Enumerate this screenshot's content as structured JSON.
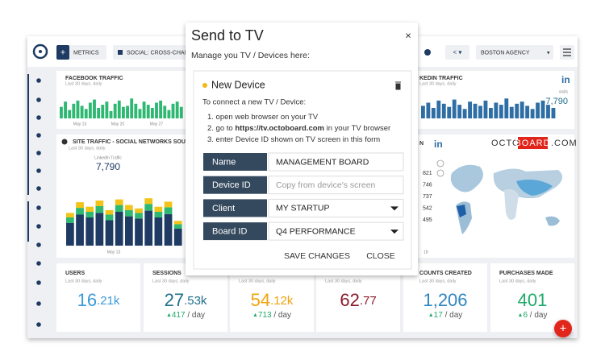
{
  "topbar": {
    "metrics_button": "METRICS",
    "dashboard_selector": "SOCIAL: CROSS-CHANN",
    "account_selector": "BOSTON AGENCY"
  },
  "widgets": {
    "facebook": {
      "title": "FACEBOOK TRAFFIC",
      "subtitle": "Last 30 days, daily",
      "dates": [
        "May 13",
        "May 20",
        "May 27"
      ],
      "color": "#2eb872",
      "bars": [
        55,
        80,
        40,
        70,
        85,
        60,
        45,
        75,
        90,
        50,
        65,
        80,
        35,
        70,
        85,
        55,
        60,
        95,
        70,
        45,
        80,
        65,
        50,
        75,
        85,
        60,
        40,
        70,
        80,
        55
      ]
    },
    "linkedin": {
      "title": "KEDIN TRAFFIC",
      "subtitle": "Last 30 days, daily",
      "metric_label": "visits",
      "metric_value": "7,790",
      "color": "#2f6ea5",
      "bars": [
        60,
        75,
        50,
        85,
        70,
        55,
        90,
        65,
        45,
        80,
        70,
        60,
        85,
        50,
        75,
        65,
        95,
        55,
        70,
        80,
        60,
        45,
        75,
        85,
        65,
        50
      ]
    },
    "website": {
      "title": "SITE TRAFFIC - SOCIAL NETWORKS SOURCES",
      "subtitle": "Last 30 days, daily",
      "metric_label": "LinkedIn Traffic",
      "metric_value": "7,790",
      "dates": [
        "May 13"
      ],
      "colors": [
        "#1f3b63",
        "#2eb872",
        "#f2c318"
      ],
      "stacks": [
        [
          40,
          10,
          8
        ],
        [
          55,
          12,
          10
        ],
        [
          50,
          10,
          9
        ],
        [
          58,
          12,
          10
        ],
        [
          45,
          10,
          8
        ],
        [
          60,
          12,
          10
        ],
        [
          52,
          11,
          9
        ],
        [
          48,
          10,
          8
        ],
        [
          62,
          12,
          10
        ],
        [
          50,
          10,
          9
        ],
        [
          56,
          12,
          10
        ],
        [
          30,
          8,
          6
        ]
      ]
    },
    "map": {
      "title": "N",
      "brand": {
        "left": "OCTO",
        "box": "BOARD",
        "right": ".COM"
      },
      "values": [
        821,
        746,
        737,
        542,
        495
      ],
      "date": "18"
    }
  },
  "kpis": [
    {
      "title": "USERS",
      "subtitle": "Last 30 days, daily",
      "value": "16",
      "suffix": ".21k",
      "color": "#3a9ad9"
    },
    {
      "title": "SESSIONS",
      "subtitle": "Last 30 days, daily",
      "value": "27",
      "suffix": ".53k",
      "color": "#1f6f8b",
      "delta": "417",
      "per": "/ day"
    },
    {
      "subtitle": "Last 30 days, daily",
      "value": "54",
      "suffix": ".12k",
      "color": "#f0a30a",
      "delta": "713",
      "per": "/ day"
    },
    {
      "subtitle": "Last 30 days, daily",
      "value": "62",
      "suffix": ".77",
      "color": "#8b1a2b"
    },
    {
      "title": "COUNTS CREATED",
      "subtitle": "Last 30 days, daily",
      "value": "1,206",
      "color": "#2e86c1",
      "delta": "17",
      "per": "/ day"
    },
    {
      "title": "PURCHASES MADE",
      "subtitle": "Last 30 days, daily",
      "value": "401",
      "color": "#1eaa6a",
      "delta": "6",
      "per": "/ day"
    }
  ],
  "modal": {
    "title": "Send to TV",
    "close_icon": "×",
    "subtitle": "Manage you TV / Devices here:",
    "device_title": "New Device",
    "intro": "To connect a new TV / Device:",
    "steps": [
      [
        "1. open web browser on your TV"
      ],
      [
        "2. go to ",
        "https://tv.octoboard.com",
        " in your TV browser"
      ],
      [
        "3. enter Device ID shown on TV screen in this form"
      ]
    ],
    "fields": [
      {
        "label": "Name",
        "value": "MANAGEMENT BOARD"
      },
      {
        "label": "Device ID",
        "placeholder": "Copy from device's screen"
      },
      {
        "label": "Client",
        "value": "MY STARTUP"
      },
      {
        "label": "Board ID",
        "value": "Q4 PERFORMANCE"
      }
    ],
    "save_button": "SAVE CHANGES",
    "close_button": "CLOSE"
  }
}
